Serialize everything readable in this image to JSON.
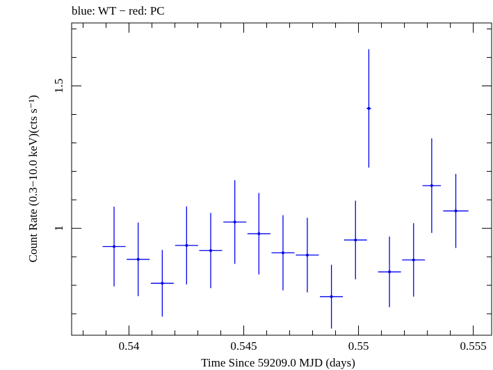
{
  "chart_data": {
    "type": "scatter",
    "title": "blue: WT − red: PC",
    "xlabel": "Time Since 59209.0 MJD (days)",
    "ylabel": "Count Rate (0.3−10.0 keV)(cts s⁻¹)",
    "xlim": [
      0.5375,
      0.5558
    ],
    "ylim": [
      0.6246,
      1.7211
    ],
    "x_ticks": [
      0.54,
      0.545,
      0.55,
      0.555
    ],
    "x_tick_labels": [
      "0.54",
      "0.545",
      "0.55",
      "0.555"
    ],
    "y_ticks": [
      1.0,
      1.5
    ],
    "y_tick_labels": [
      "1",
      "1.5"
    ],
    "grid": false,
    "colors": {
      "WT": "#0000ee",
      "axes": "#000000"
    },
    "series": [
      {
        "points": [
          {
            "x": 0.53935,
            "xerr": 0.0005,
            "y": 0.936,
            "yerr": 0.14
          },
          {
            "x": 0.5404,
            "xerr": 0.0005,
            "y": 0.891,
            "yerr": 0.129
          },
          {
            "x": 0.54145,
            "xerr": 0.0005,
            "y": 0.807,
            "yerr": 0.117
          },
          {
            "x": 0.54251,
            "xerr": 0.0005,
            "y": 0.94,
            "yerr": 0.137
          },
          {
            "x": 0.54356,
            "xerr": 0.0005,
            "y": 0.922,
            "yerr": 0.132
          },
          {
            "x": 0.54461,
            "xerr": 0.0005,
            "y": 1.022,
            "yerr": 0.147
          },
          {
            "x": 0.54566,
            "xerr": 0.0005,
            "y": 0.981,
            "yerr": 0.143
          },
          {
            "x": 0.54671,
            "xerr": 0.0005,
            "y": 0.914,
            "yerr": 0.132
          },
          {
            "x": 0.54777,
            "xerr": 0.0005,
            "y": 0.906,
            "yerr": 0.131
          },
          {
            "x": 0.54882,
            "xerr": 0.0005,
            "y": 0.76,
            "yerr": 0.112
          },
          {
            "x": 0.54987,
            "xerr": 0.0005,
            "y": 0.959,
            "yerr": 0.138
          },
          {
            "x": 0.55045,
            "xerr": 0.0001,
            "y": 1.421,
            "yerr": 0.208
          },
          {
            "x": 0.55135,
            "xerr": 0.0005,
            "y": 0.847,
            "yerr": 0.124
          },
          {
            "x": 0.5524,
            "xerr": 0.0005,
            "y": 0.889,
            "yerr": 0.129
          },
          {
            "x": 0.55319,
            "xerr": 0.0004,
            "y": 1.15,
            "yerr": 0.166
          },
          {
            "x": 0.55424,
            "xerr": 0.00055,
            "y": 1.061,
            "yerr": 0.13
          }
        ]
      }
    ]
  }
}
